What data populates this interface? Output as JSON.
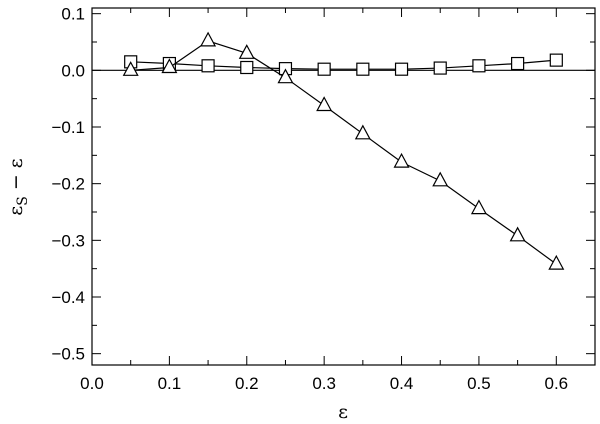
{
  "chart_data": {
    "type": "line",
    "xlabel": "ε",
    "ylabel_main": "ε",
    "ylabel_sub": "S",
    "ylabel_rest": " − ε",
    "xlim": [
      0.0,
      0.65
    ],
    "ylim": [
      -0.52,
      0.11
    ],
    "xticks": [
      0.0,
      0.1,
      0.2,
      0.3,
      0.4,
      0.5,
      0.6
    ],
    "xtick_labels": [
      "0.0",
      "0.1",
      "0.2",
      "0.3",
      "0.4",
      "0.5",
      "0.6"
    ],
    "yticks": [
      0.1,
      0.0,
      -0.1,
      -0.2,
      -0.3,
      -0.4,
      -0.5
    ],
    "ytick_labels": [
      "0.1",
      "0.0",
      "−0.1",
      "−0.2",
      "−0.3",
      "−0.4",
      "−0.5"
    ],
    "zero_line": true,
    "grid": false,
    "series": [
      {
        "marker": "square",
        "x": [
          0.05,
          0.1,
          0.15,
          0.2,
          0.25,
          0.3,
          0.35,
          0.4,
          0.45,
          0.5,
          0.55,
          0.6
        ],
        "y": [
          0.015,
          0.012,
          0.008,
          0.005,
          0.003,
          0.002,
          0.002,
          0.002,
          0.004,
          0.008,
          0.012,
          0.018
        ]
      },
      {
        "marker": "triangle",
        "x": [
          0.05,
          0.1,
          0.15,
          0.2,
          0.25,
          0.3,
          0.35,
          0.4,
          0.45,
          0.5,
          0.55,
          0.6
        ],
        "y": [
          0.0,
          0.005,
          0.052,
          0.03,
          -0.013,
          -0.062,
          -0.112,
          -0.162,
          -0.195,
          -0.244,
          -0.292,
          -0.342
        ]
      }
    ]
  }
}
